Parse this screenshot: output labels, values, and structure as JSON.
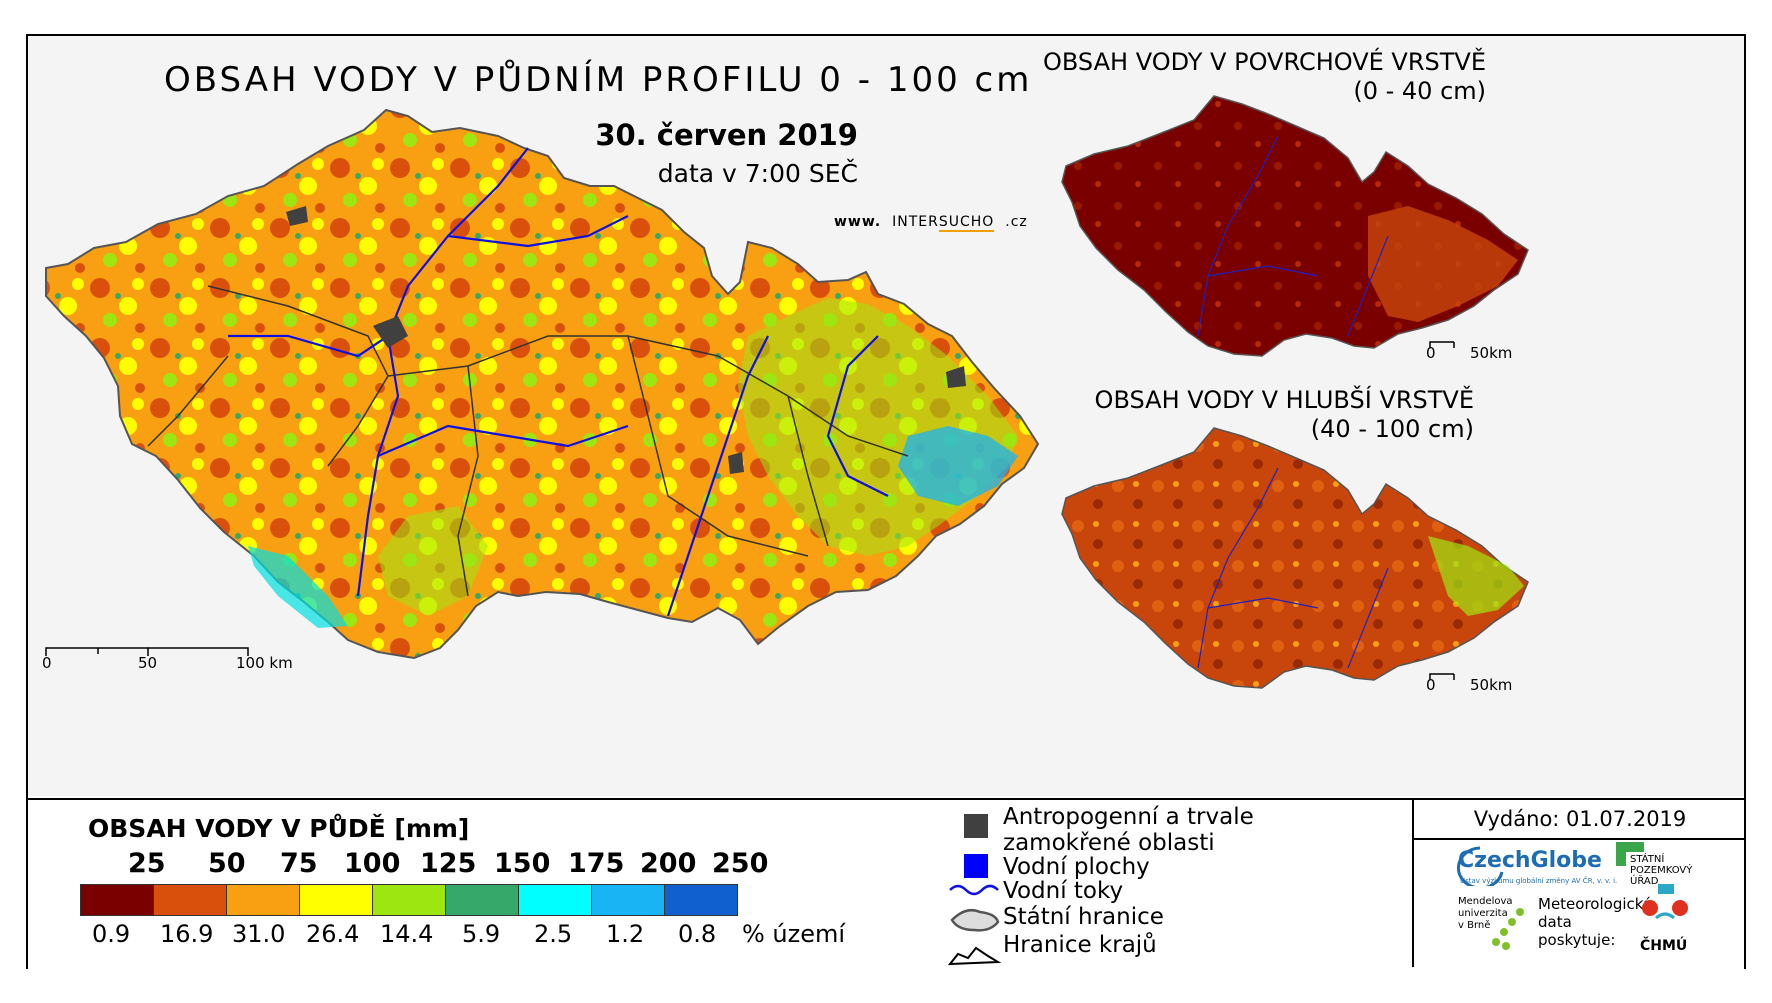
{
  "main": {
    "title": "OBSAH VODY V PŮDNÍM PROFILU 0 - 100 cm",
    "date": "30. červen 2019",
    "time": "data v 7:00 SEČ",
    "web_prefix": "www.",
    "web_inter": "INTER",
    "web_sucho": "SUCHO",
    "web_suffix": ".cz",
    "scale": [
      "0",
      "50",
      "100 km"
    ]
  },
  "inset_top": {
    "title_line1": "OBSAH VODY V POVRCHOVÉ VRSTVĚ",
    "title_line2": "(0 - 40 cm)",
    "scale": [
      "0",
      "50km"
    ]
  },
  "inset_bottom": {
    "title_line1": "OBSAH VODY V HLUBŠÍ VRSTVĚ",
    "title_line2": "(40 - 100 cm)",
    "scale": [
      "0",
      "50km"
    ]
  },
  "legend": {
    "title": "OBSAH VODY V PŮDĚ [mm]",
    "breaks": [
      "25",
      "50",
      "75",
      "100",
      "125",
      "150",
      "175",
      "200",
      "250"
    ],
    "colors": [
      "#7a0000",
      "#d8500c",
      "#f8a012",
      "#ffff00",
      "#9ee612",
      "#35a86a",
      "#00ffff",
      "#18b4f4",
      "#1060d0"
    ],
    "percent": [
      "0.9",
      "16.9",
      "31.0",
      "26.4",
      "14.4",
      "5.9",
      "2.5",
      "1.2",
      "0.8"
    ],
    "percent_label": "% území"
  },
  "symbols": {
    "anthropogenic_line1": "Antropogenní a trvale",
    "anthropogenic_line2": "zamokřené oblasti",
    "anthropogenic_color": "#404040",
    "water_bodies": "Vodní plochy",
    "water_color": "#0000ff",
    "rivers": "Vodní toky",
    "border": "Státní hranice",
    "regions": "Hranice krajů"
  },
  "footer": {
    "issued": "Vydáno: 01.07.2019",
    "czechglobe": "CzechGlobe",
    "czechglobe_sub": "Ústav výzkumu globální změny AV ČR, v. v. i.",
    "spu_1": "STÁTNÍ",
    "spu_2": "POZEMKOVÝ",
    "spu_3": "ÚŘAD",
    "mendel_1": "Mendelova",
    "mendel_2": "univerzita",
    "mendel_3": "v Brně",
    "meteo_1": "Meteorologická",
    "meteo_2": "data",
    "meteo_3": "poskytuje:",
    "chmu": "ČHMÚ"
  }
}
